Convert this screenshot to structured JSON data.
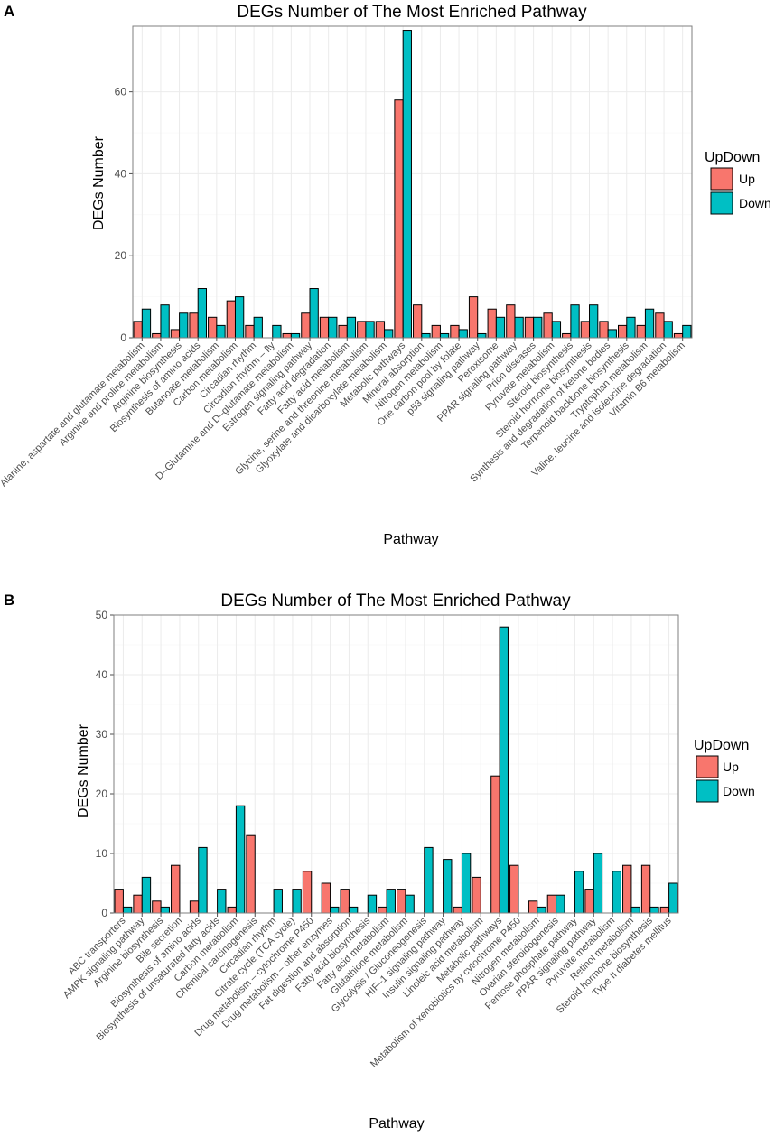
{
  "panels": [
    {
      "label": "A"
    },
    {
      "label": "B"
    }
  ],
  "chart_data": [
    {
      "type": "bar",
      "panel": "A",
      "title": "DEGs Number of The Most Enriched Pathway",
      "xlabel": "Pathway",
      "ylabel": "DEGs Number",
      "ylim": [
        0,
        76
      ],
      "yticks": [
        0,
        20,
        40,
        60
      ],
      "legend": {
        "title": "UpDown",
        "position": "right",
        "entries": [
          "Up",
          "Down"
        ]
      },
      "colors": {
        "Up": "#F8766D",
        "Down": "#00BFC4"
      },
      "categories": [
        "Alanine, aspartate and glutamate metabolism",
        "Arginine and proline metabolism",
        "Arginine biosynthesis",
        "Biosynthesis of amino acids",
        "Butanoate metabolism",
        "Carbon metabolism",
        "Circadian rhythm",
        "Circadian rhythm – fly",
        "D–Glutamine and D–glutamate metabolism",
        "Estrogen signaling pathway",
        "Fatty acid degradation",
        "Fatty acid metabolism",
        "Glycine, serine and threonine metabolism",
        "Glyoxylate and dicarboxylate metabolism",
        "Metabolic pathways",
        "Mineral absorption",
        "Nitrogen metabolism",
        "One carbon pool by folate",
        "p53 signaling pathway",
        "Peroxisome",
        "PPAR signaling pathway",
        "Prion diseases",
        "Pyruvate metabolism",
        "Steroid biosynthesis",
        "Steroid hormone biosynthesis",
        "Synthesis and degradation of ketone bodies",
        "Terpenoid backbone biosynthesis",
        "Tryptophan metabolism",
        "Valine, leucine and isoleucine degradation",
        "Vitamin B6 metabolism"
      ],
      "series": [
        {
          "name": "Up",
          "values": [
            4,
            1,
            2,
            6,
            5,
            9,
            3,
            0,
            1,
            6,
            5,
            3,
            4,
            4,
            58,
            8,
            3,
            3,
            10,
            7,
            8,
            5,
            6,
            1,
            4,
            4,
            3,
            3,
            6,
            1
          ]
        },
        {
          "name": "Down",
          "values": [
            7,
            8,
            6,
            12,
            3,
            10,
            5,
            3,
            1,
            12,
            5,
            5,
            4,
            2,
            75,
            1,
            1,
            2,
            1,
            5,
            5,
            5,
            4,
            8,
            8,
            2,
            5,
            7,
            4,
            3
          ]
        }
      ]
    },
    {
      "type": "bar",
      "panel": "B",
      "title": "DEGs Number of The Most Enriched Pathway",
      "xlabel": "Pathway",
      "ylabel": "DEGs Number",
      "ylim": [
        0,
        50
      ],
      "yticks": [
        0,
        10,
        20,
        30,
        40,
        50
      ],
      "legend": {
        "title": "UpDown",
        "position": "right",
        "entries": [
          "Up",
          "Down"
        ]
      },
      "colors": {
        "Up": "#F8766D",
        "Down": "#00BFC4"
      },
      "categories": [
        "ABC transporters",
        "AMPK signaling pathway",
        "Arginine biosynthesis",
        "Bile secretion",
        "Biosynthesis of amino acids",
        "Biosynthesis of unsaturated fatty acids",
        "Carbon metabolism",
        "Chemical carcinogenesis",
        "Circadian rhythm",
        "Citrate cycle (TCA cycle)",
        "Drug metabolism – cytochrome P450",
        "Drug metabolism – other enzymes",
        "Fat digestion and absorption",
        "Fatty acid biosynthesis",
        "Fatty acid metabolism",
        "Glutathione metabolism",
        "Glycolysis / Gluconeogenesis",
        "HIF–1 signaling pathway",
        "Insulin signaling pathway",
        "Linoleic acid metabolism",
        "Metabolic pathways",
        "Metabolism of xenobiotics by cytochrome P450",
        "Nitrogen metabolism",
        "Ovarian steroidogenesis",
        "Pentose phosphate pathway",
        "PPAR signaling pathway",
        "Pyruvate metabolism",
        "Retinol metabolism",
        "Steroid hormone biosynthesis",
        "Type II diabetes mellitus"
      ],
      "series": [
        {
          "name": "Up",
          "values": [
            4,
            3,
            2,
            8,
            2,
            0,
            1,
            13,
            0,
            0,
            7,
            5,
            4,
            0,
            1,
            4,
            0,
            0,
            1,
            6,
            23,
            8,
            2,
            3,
            0,
            4,
            0,
            8,
            8,
            1
          ]
        },
        {
          "name": "Down",
          "values": [
            1,
            6,
            1,
            0,
            11,
            4,
            18,
            0,
            4,
            4,
            0,
            1,
            1,
            3,
            4,
            3,
            11,
            9,
            10,
            0,
            48,
            0,
            1,
            3,
            7,
            10,
            7,
            1,
            1,
            5
          ]
        }
      ]
    }
  ]
}
